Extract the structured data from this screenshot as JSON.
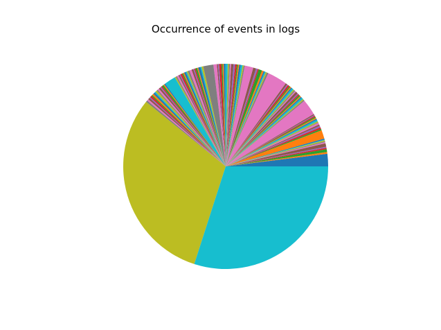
{
  "chart_data": {
    "type": "pie",
    "title": "Occurrence of events in logs",
    "labels_shown": false,
    "legend": "none",
    "start_angle_deg": 0,
    "direction": "counterclockwise",
    "colors": [
      "#1f77b4",
      "#ff7f0e",
      "#2ca02c",
      "#d62728",
      "#9467bd",
      "#8c564b",
      "#e377c2",
      "#7f7f7f",
      "#bcbd22",
      "#17becf"
    ],
    "values": [
      2.2,
      0.3,
      0.5,
      0.25,
      0.2,
      0.6,
      0.2,
      0.15,
      0.2,
      0.1,
      0.2,
      1.5,
      0.25,
      0.3,
      0.3,
      0.25,
      0.3,
      0.1,
      0.2,
      0.3,
      0.2,
      0.2,
      0.2,
      0.2,
      0.15,
      0.2,
      2.8,
      0.2,
      0.2,
      0.3,
      0.2,
      0.2,
      0.25,
      0.2,
      0.2,
      0.4,
      0.2,
      0.2,
      0.2,
      0.3,
      0.2,
      0.2,
      0.2,
      0.3,
      0.2,
      0.3,
      3.5,
      0.3,
      0.2,
      0.2,
      0.2,
      0.3,
      0.6,
      0.2,
      0.3,
      0.5,
      1.5,
      0.2,
      0.2,
      0.3,
      0.3,
      0.2,
      0.2,
      0.3,
      0.3,
      0.4,
      0.2,
      0.2,
      0.2,
      0.4,
      0.3,
      0.2,
      0.2,
      0.4,
      0.2,
      0.2,
      0.6,
      1.8,
      0.3,
      0.2,
      0.4,
      0.2,
      0.3,
      0.2,
      0.2,
      0.3,
      0.4,
      0.3,
      0.2,
      0.2,
      0.3,
      0.2,
      0.2,
      0.3,
      0.2,
      0.2,
      0.3,
      0.2,
      0.2,
      2.0,
      0.2,
      0.2,
      0.3,
      0.2,
      0.2,
      0.3,
      0.3,
      0.2,
      0.3,
      0.2,
      0.3,
      0.3,
      0.2,
      0.3,
      0.2,
      0.3,
      0.3,
      0.3,
      34.5,
      33.5
    ]
  }
}
